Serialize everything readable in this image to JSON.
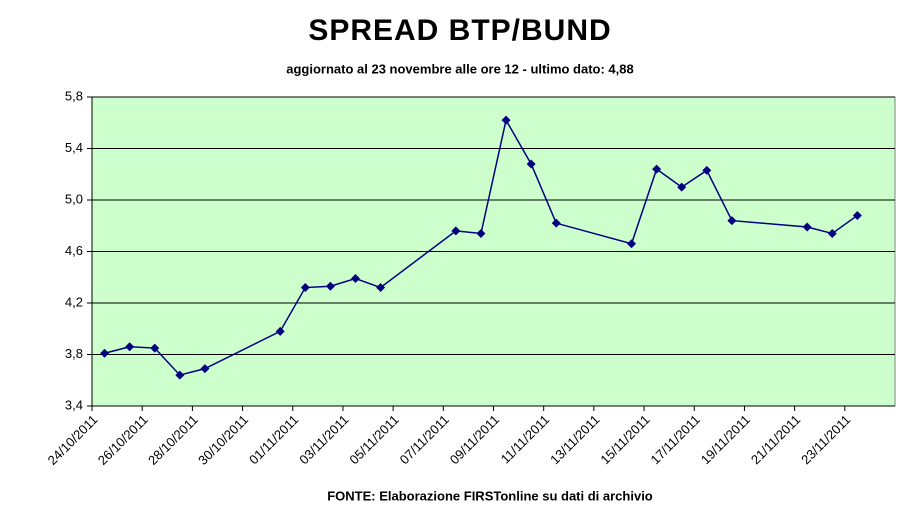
{
  "chart_data": {
    "type": "line",
    "title": "SPREAD BTP/BUND",
    "subtitle": "aggiornato al 23 novembre alle ore 12 - ultimo dato: 4,88",
    "source": "FONTE: Elaborazione FIRSTonline su dati di archivio",
    "x": [
      "24/10/2011",
      "25/10/2011",
      "26/10/2011",
      "27/10/2011",
      "28/10/2011",
      "31/10/2011",
      "01/11/2011",
      "02/11/2011",
      "03/11/2011",
      "04/11/2011",
      "07/11/2011",
      "08/11/2011",
      "09/11/2011",
      "10/11/2011",
      "11/11/2011",
      "14/11/2011",
      "15/11/2011",
      "16/11/2011",
      "17/11/2011",
      "18/11/2011",
      "21/11/2011",
      "22/11/2011",
      "23/11/2011"
    ],
    "values": [
      3.81,
      3.86,
      3.85,
      3.64,
      3.69,
      3.98,
      4.32,
      4.33,
      4.39,
      4.32,
      4.76,
      4.74,
      5.62,
      5.28,
      4.82,
      4.66,
      5.24,
      5.1,
      5.23,
      4.84,
      4.79,
      4.74,
      4.88
    ],
    "color": "#000080",
    "background": "#ccffcc",
    "grid": true,
    "xlim": [
      "24/10/2011",
      "25/11/2011"
    ],
    "xticks": [
      "24/10/2011",
      "26/10/2011",
      "28/10/2011",
      "30/10/2011",
      "01/11/2011",
      "03/11/2011",
      "05/11/2011",
      "07/11/2011",
      "09/11/2011",
      "11/11/2011",
      "13/11/2011",
      "15/11/2011",
      "17/11/2011",
      "19/11/2011",
      "21/11/2011",
      "23/11/2011"
    ],
    "ylim": [
      3.4,
      5.8
    ],
    "yticks": [
      {
        "value": 3.4,
        "label": "3,4"
      },
      {
        "value": 3.8,
        "label": "3,8"
      },
      {
        "value": 4.2,
        "label": "4,2"
      },
      {
        "value": 4.6,
        "label": "4,6"
      },
      {
        "value": 5.0,
        "label": "5,0"
      },
      {
        "value": 5.4,
        "label": "5,4"
      },
      {
        "value": 5.8,
        "label": "5,8"
      }
    ]
  }
}
